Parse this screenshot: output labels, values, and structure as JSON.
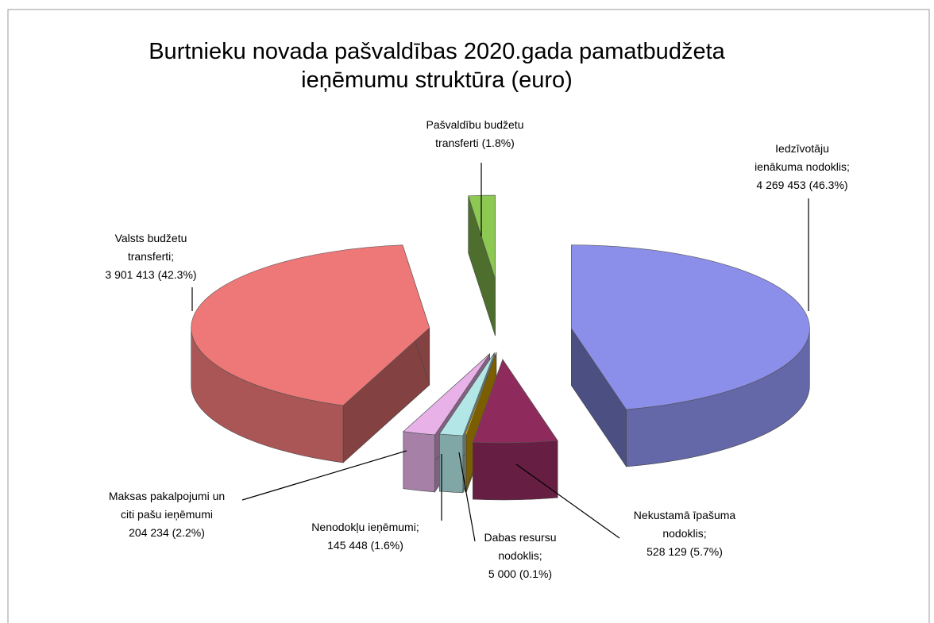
{
  "chart_data": {
    "type": "pie",
    "title": "Burtnieku novada pašvaldības 2020.gada pamatbudžeta ieņēmumu struktūra (euro)",
    "categories": [
      "Iedzīvotāju ienākuma nodoklis;",
      "Nekustamā īpašuma nodoklis;",
      "Dabas resursu nodoklis;",
      "Nenodokļu ieņēmumi;",
      "Maksas pakalpojumi un citi pašu ieņēmumi",
      "Valsts budžetu transferti;",
      "Pašvaldību budžetu transferti"
    ],
    "values": [
      46.3,
      5.7,
      0.1,
      1.6,
      2.2,
      42.3,
      1.8
    ],
    "value_labels": [
      "4 269 453 (46.3%)",
      "528 129 (5.7%)",
      "5 000 (0.1%)",
      "145 448 (1.6%)",
      "204 234 (2.2%)",
      "3 901 413 (42.3%)",
      "(1.8%)"
    ],
    "colors": [
      "#8b8fea",
      "#8e2b5c",
      "#e0aa00",
      "#b3e6e6",
      "#e8b2e8",
      "#ee7777",
      "#8cc852"
    ]
  }
}
